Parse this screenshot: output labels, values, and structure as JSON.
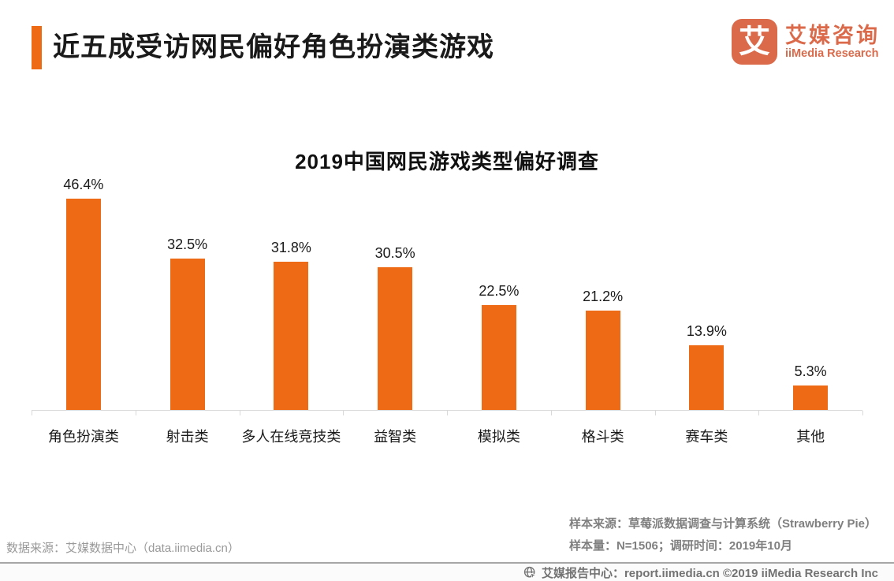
{
  "header": {
    "title": "近五成受访网民偏好角色扮演类游戏",
    "logo": {
      "mark_char": "艾",
      "name_cn": "艾媒咨询",
      "name_en": "iiMedia Research"
    }
  },
  "chart_data": {
    "type": "bar",
    "title": "2019中国网民游戏类型偏好调查",
    "categories": [
      "角色扮演类",
      "射击类",
      "多人在线竞技类",
      "益智类",
      "模拟类",
      "格斗类",
      "赛车类",
      "其他"
    ],
    "values": [
      46.4,
      32.5,
      31.8,
      30.5,
      22.5,
      21.2,
      13.9,
      5.3
    ],
    "value_labels": [
      "46.4%",
      "32.5%",
      "31.8%",
      "30.5%",
      "22.5%",
      "21.2%",
      "13.9%",
      "5.3%"
    ],
    "xlabel": "",
    "ylabel": "",
    "ylim": [
      0,
      50
    ],
    "grid": false,
    "legend": "none",
    "bar_color": "#EE6A14",
    "axis_color": "#D9D9D9"
  },
  "sources": {
    "data_source": "数据来源：艾媒数据中心（data.iimedia.cn）",
    "sample_source": "样本来源：草莓派数据调查与计算系统（Strawberry Pie）",
    "sample_size": "样本量：N=1506；调研时间：2019年10月"
  },
  "footer": {
    "text": "艾媒报告中心：report.iimedia.cn ©2019  iiMedia Research Inc"
  },
  "colors": {
    "accent_orange": "#EE6A14",
    "logo_orange": "#DB6A4B",
    "text_black": "#1A1A1A",
    "text_gray": "#808080",
    "axis_gray": "#D9D9D9"
  }
}
